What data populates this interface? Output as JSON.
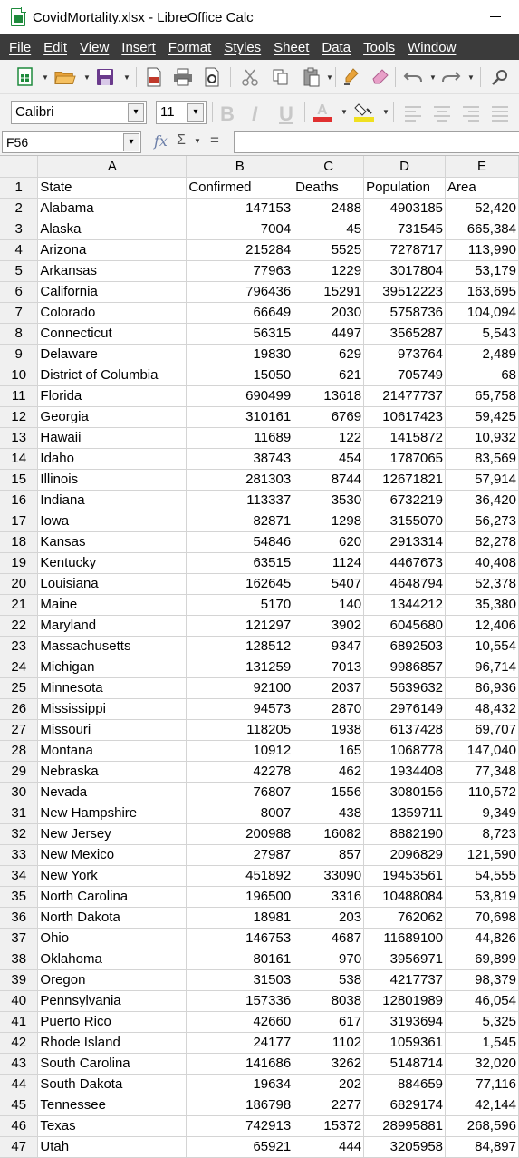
{
  "window": {
    "title": "CovidMortality.xlsx - LibreOffice Calc"
  },
  "menu": [
    "File",
    "Edit",
    "View",
    "Insert",
    "Format",
    "Styles",
    "Sheet",
    "Data",
    "Tools",
    "Window"
  ],
  "toolbar": {
    "font_name": "Calibri",
    "font_size": "11"
  },
  "formula_bar": {
    "cell_ref": "F56",
    "formula": ""
  },
  "colors": {
    "menubar_bg": "#3b3b3b",
    "toolbar_bg": "#f2f2f2",
    "header_bg": "#f0f0f0",
    "font_color_accent": "#e03030",
    "highlight_accent": "#f0e020"
  },
  "sheet": {
    "columns": [
      "A",
      "B",
      "C",
      "D",
      "E"
    ],
    "rows": [
      [
        "State",
        "Confirmed",
        "Deaths",
        "Population",
        "Area"
      ],
      [
        "Alabama",
        "147153",
        "2488",
        "4903185",
        "52,420"
      ],
      [
        "Alaska",
        "7004",
        "45",
        "731545",
        "665,384"
      ],
      [
        "Arizona",
        "215284",
        "5525",
        "7278717",
        "113,990"
      ],
      [
        "Arkansas",
        "77963",
        "1229",
        "3017804",
        "53,179"
      ],
      [
        "California",
        "796436",
        "15291",
        "39512223",
        "163,695"
      ],
      [
        "Colorado",
        "66649",
        "2030",
        "5758736",
        "104,094"
      ],
      [
        "Connecticut",
        "56315",
        "4497",
        "3565287",
        "5,543"
      ],
      [
        "Delaware",
        "19830",
        "629",
        "973764",
        "2,489"
      ],
      [
        "District of Columbia",
        "15050",
        "621",
        "705749",
        "68"
      ],
      [
        "Florida",
        "690499",
        "13618",
        "21477737",
        "65,758"
      ],
      [
        "Georgia",
        "310161",
        "6769",
        "10617423",
        "59,425"
      ],
      [
        "Hawaii",
        "11689",
        "122",
        "1415872",
        "10,932"
      ],
      [
        "Idaho",
        "38743",
        "454",
        "1787065",
        "83,569"
      ],
      [
        "Illinois",
        "281303",
        "8744",
        "12671821",
        "57,914"
      ],
      [
        "Indiana",
        "113337",
        "3530",
        "6732219",
        "36,420"
      ],
      [
        "Iowa",
        "82871",
        "1298",
        "3155070",
        "56,273"
      ],
      [
        "Kansas",
        "54846",
        "620",
        "2913314",
        "82,278"
      ],
      [
        "Kentucky",
        "63515",
        "1124",
        "4467673",
        "40,408"
      ],
      [
        "Louisiana",
        "162645",
        "5407",
        "4648794",
        "52,378"
      ],
      [
        "Maine",
        "5170",
        "140",
        "1344212",
        "35,380"
      ],
      [
        "Maryland",
        "121297",
        "3902",
        "6045680",
        "12,406"
      ],
      [
        "Massachusetts",
        "128512",
        "9347",
        "6892503",
        "10,554"
      ],
      [
        "Michigan",
        "131259",
        "7013",
        "9986857",
        "96,714"
      ],
      [
        "Minnesota",
        "92100",
        "2037",
        "5639632",
        "86,936"
      ],
      [
        "Mississippi",
        "94573",
        "2870",
        "2976149",
        "48,432"
      ],
      [
        "Missouri",
        "118205",
        "1938",
        "6137428",
        "69,707"
      ],
      [
        "Montana",
        "10912",
        "165",
        "1068778",
        "147,040"
      ],
      [
        "Nebraska",
        "42278",
        "462",
        "1934408",
        "77,348"
      ],
      [
        "Nevada",
        "76807",
        "1556",
        "3080156",
        "110,572"
      ],
      [
        "New Hampshire",
        "8007",
        "438",
        "1359711",
        "9,349"
      ],
      [
        "New Jersey",
        "200988",
        "16082",
        "8882190",
        "8,723"
      ],
      [
        "New Mexico",
        "27987",
        "857",
        "2096829",
        "121,590"
      ],
      [
        "New York",
        "451892",
        "33090",
        "19453561",
        "54,555"
      ],
      [
        "North Carolina",
        "196500",
        "3316",
        "10488084",
        "53,819"
      ],
      [
        "North Dakota",
        "18981",
        "203",
        "762062",
        "70,698"
      ],
      [
        "Ohio",
        "146753",
        "4687",
        "11689100",
        "44,826"
      ],
      [
        "Oklahoma",
        "80161",
        "970",
        "3956971",
        "69,899"
      ],
      [
        "Oregon",
        "31503",
        "538",
        "4217737",
        "98,379"
      ],
      [
        "Pennsylvania",
        "157336",
        "8038",
        "12801989",
        "46,054"
      ],
      [
        "Puerto Rico",
        "42660",
        "617",
        "3193694",
        "5,325"
      ],
      [
        "Rhode Island",
        "24177",
        "1102",
        "1059361",
        "1,545"
      ],
      [
        "South Carolina",
        "141686",
        "3262",
        "5148714",
        "32,020"
      ],
      [
        "South Dakota",
        "19634",
        "202",
        "884659",
        "77,116"
      ],
      [
        "Tennessee",
        "186798",
        "2277",
        "6829174",
        "42,144"
      ],
      [
        "Texas",
        "742913",
        "15372",
        "28995881",
        "268,596"
      ],
      [
        "Utah",
        "65921",
        "444",
        "3205958",
        "84,897"
      ]
    ]
  }
}
